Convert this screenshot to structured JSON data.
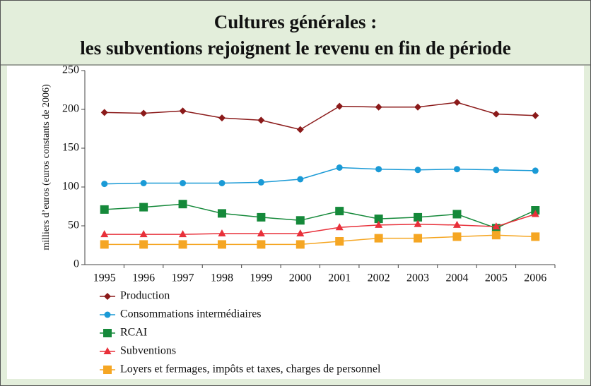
{
  "chart_data": {
    "type": "line",
    "title": "Cultures générales :",
    "subtitle": "les subventions rejoignent le revenu en fin de période",
    "y_label": "milliers d’euros (euros constants de 2006)",
    "categories": [
      "1995",
      "1996",
      "1997",
      "1998",
      "1999",
      "2000",
      "2001",
      "2002",
      "2003",
      "2004",
      "2005",
      "2006"
    ],
    "ylim": [
      0,
      250
    ],
    "yticks": [
      0,
      50,
      100,
      150,
      200,
      250
    ],
    "series": [
      {
        "name": "Production",
        "color": "#8b1a1a",
        "marker": "diamond",
        "values": [
          196,
          195,
          198,
          189,
          186,
          174,
          204,
          203,
          203,
          209,
          194,
          192
        ]
      },
      {
        "name": "Consommations intermédiaires",
        "color": "#1a9ad6",
        "marker": "circle",
        "values": [
          104,
          105,
          105,
          105,
          106,
          110,
          125,
          123,
          122,
          123,
          122,
          121
        ]
      },
      {
        "name": "RCAI",
        "color": "#15893a",
        "marker": "square",
        "values": [
          71,
          74,
          78,
          66,
          61,
          57,
          69,
          59,
          61,
          65,
          47,
          70
        ]
      },
      {
        "name": "Subventions",
        "color": "#e8303a",
        "marker": "triangle",
        "values": [
          39,
          39,
          39,
          40,
          40,
          40,
          48,
          51,
          52,
          51,
          49,
          65
        ]
      },
      {
        "name": "Loyers et fermages, impôts et taxes, charges de personnel",
        "color": "#f5a623",
        "marker": "square",
        "values": [
          26,
          26,
          26,
          26,
          26,
          26,
          30,
          34,
          34,
          36,
          38,
          36
        ]
      }
    ]
  }
}
